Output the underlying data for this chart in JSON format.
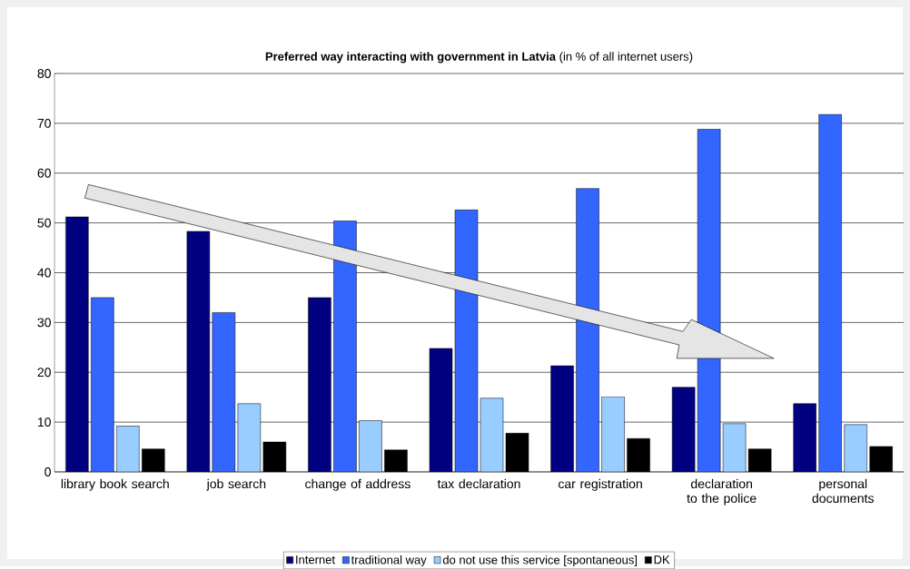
{
  "chart_data": {
    "type": "bar",
    "title": "**Preferred way interacting with government in Latvia** (in % of all internet users)",
    "categories": [
      "library book search",
      "job search",
      "change of address",
      "tax declaration",
      "car registration",
      "declaration to the police",
      "personal documents"
    ],
    "series": [
      {
        "name": "Internet",
        "color": "#000080",
        "values": [
          51.2,
          48.3,
          35.0,
          24.8,
          21.3,
          17.0,
          13.7
        ]
      },
      {
        "name": "traditional way",
        "color": "#3366ff",
        "values": [
          35.0,
          32.0,
          50.4,
          52.6,
          56.9,
          68.8,
          71.8
        ]
      },
      {
        "name": "do not use this service [spontaneous]",
        "color": "#99ccff",
        "values": [
          9.2,
          13.7,
          10.3,
          14.8,
          15.1,
          9.7,
          9.5
        ]
      },
      {
        "name": "DK",
        "color": "#000000",
        "values": [
          4.6,
          6.0,
          4.4,
          7.8,
          6.7,
          4.6,
          5.1
        ]
      }
    ],
    "ylim": [
      0,
      80
    ],
    "yticks": [
      0,
      10,
      20,
      30,
      40,
      50,
      60,
      70,
      80
    ],
    "grid": "y",
    "legend": "bottom"
  }
}
